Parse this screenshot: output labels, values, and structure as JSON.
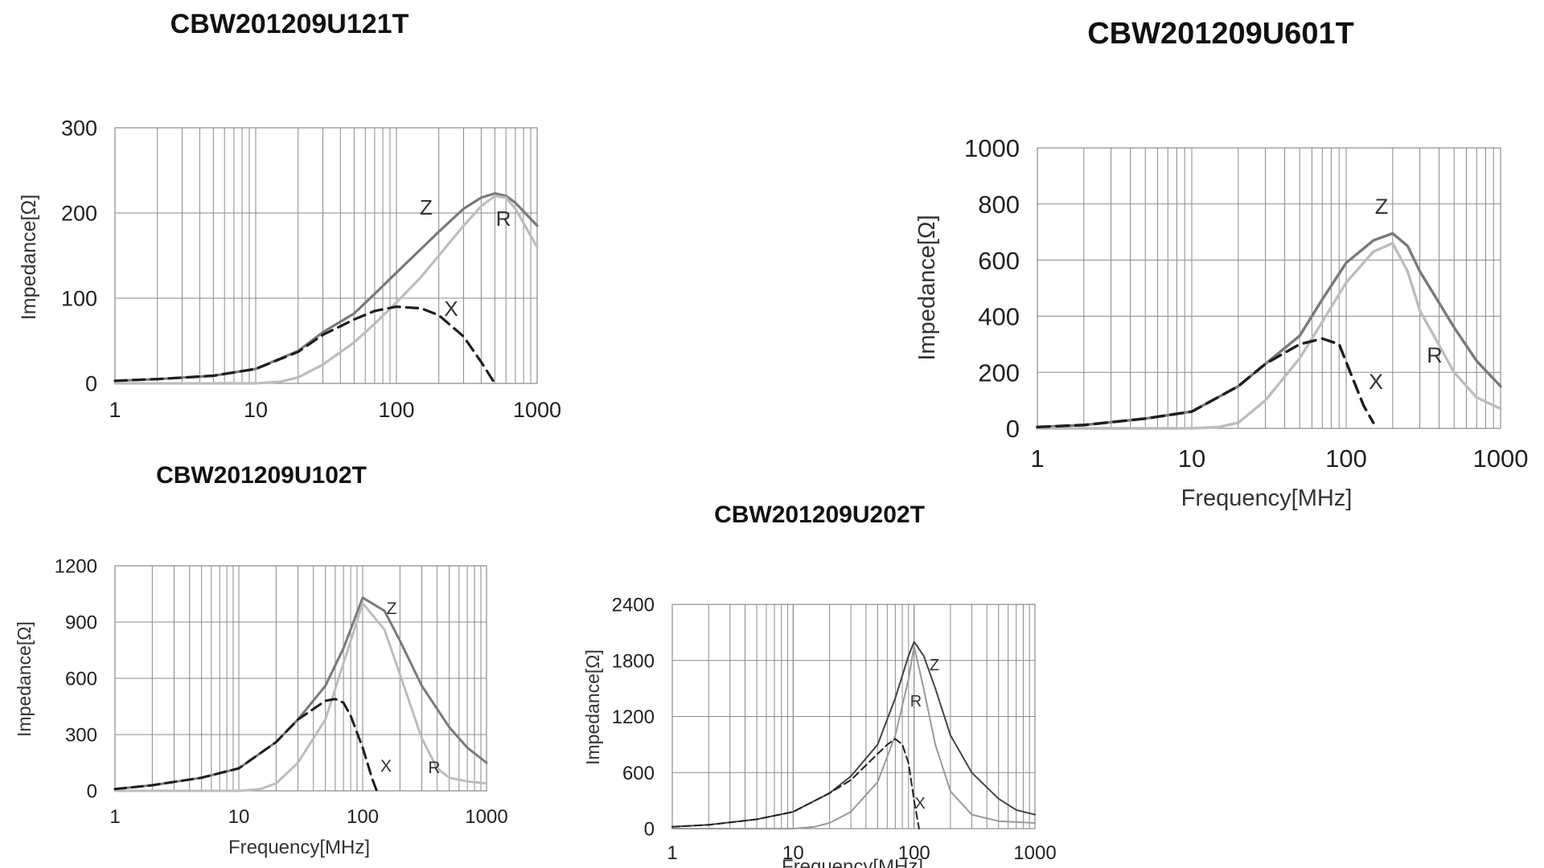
{
  "chart_data": [
    {
      "type": "line",
      "title": "CBW201209U121T",
      "xlabel": "",
      "ylabel": "Impedance[Ω]",
      "x_scale": "log",
      "xlim": [
        1,
        1000
      ],
      "ylim": [
        0,
        300
      ],
      "x_ticks": [
        "1",
        "10",
        "100",
        "1000"
      ],
      "y_ticks": [
        "0",
        "100",
        "200",
        "300"
      ],
      "grid": true,
      "series": [
        {
          "name": "Z",
          "color": "#7a7a7a",
          "style": "solid",
          "x": [
            1,
            2,
            5,
            10,
            20,
            30,
            50,
            70,
            100,
            150,
            200,
            300,
            400,
            500,
            600,
            700,
            1000
          ],
          "y": [
            3,
            5,
            9,
            17,
            38,
            60,
            82,
            105,
            130,
            158,
            178,
            205,
            218,
            223,
            220,
            212,
            185
          ]
        },
        {
          "name": "R",
          "color": "#bdbdbd",
          "style": "solid",
          "x": [
            1,
            5,
            10,
            15,
            20,
            30,
            50,
            70,
            100,
            150,
            200,
            300,
            400,
            500,
            600,
            700,
            1000
          ],
          "y": [
            0,
            0,
            0,
            2,
            7,
            22,
            48,
            70,
            95,
            125,
            150,
            185,
            208,
            220,
            218,
            205,
            160
          ]
        },
        {
          "name": "X",
          "color": "#1e1e1e",
          "style": "dashed",
          "x": [
            1,
            2,
            5,
            10,
            20,
            30,
            50,
            70,
            100,
            150,
            200,
            300,
            400,
            500
          ],
          "y": [
            3,
            5,
            9,
            17,
            37,
            57,
            75,
            85,
            90,
            88,
            80,
            55,
            25,
            0
          ]
        }
      ]
    },
    {
      "type": "line",
      "title": "CBW201209U601T",
      "xlabel": "Frequency[MHz]",
      "ylabel": "Impedance[Ω]",
      "x_scale": "log",
      "xlim": [
        1,
        1000
      ],
      "ylim": [
        0,
        1000
      ],
      "x_ticks": [
        "1",
        "10",
        "100",
        "1000"
      ],
      "y_ticks": [
        "0",
        "200",
        "400",
        "600",
        "800",
        "1000"
      ],
      "grid": true,
      "series": [
        {
          "name": "Z",
          "color": "#7a7a7a",
          "style": "solid",
          "x": [
            1,
            2,
            5,
            10,
            20,
            30,
            50,
            70,
            100,
            150,
            200,
            250,
            300,
            500,
            700,
            1000
          ],
          "y": [
            5,
            12,
            35,
            60,
            150,
            230,
            330,
            460,
            590,
            670,
            695,
            650,
            560,
            360,
            240,
            150
          ]
        },
        {
          "name": "R",
          "color": "#bdbdbd",
          "style": "solid",
          "x": [
            1,
            10,
            15,
            20,
            30,
            50,
            70,
            100,
            150,
            200,
            250,
            300,
            500,
            700,
            1000
          ],
          "y": [
            0,
            0,
            5,
            20,
            100,
            250,
            380,
            520,
            630,
            660,
            560,
            420,
            200,
            110,
            70
          ]
        },
        {
          "name": "X",
          "color": "#1e1e1e",
          "style": "dashed",
          "x": [
            1,
            2,
            5,
            10,
            20,
            30,
            50,
            70,
            90,
            110,
            130,
            150
          ],
          "y": [
            5,
            12,
            35,
            60,
            150,
            230,
            300,
            320,
            300,
            180,
            80,
            20
          ]
        }
      ]
    },
    {
      "type": "line",
      "title": "CBW201209U102T",
      "xlabel": "Frequency[MHz]",
      "ylabel": "Impedance[Ω]",
      "x_scale": "log",
      "xlim": [
        1,
        1000
      ],
      "ylim": [
        0,
        1200
      ],
      "x_ticks": [
        "1",
        "10",
        "100",
        "1000"
      ],
      "y_ticks": [
        "0",
        "300",
        "600",
        "900",
        "1200"
      ],
      "grid": true,
      "series": [
        {
          "name": "Z",
          "color": "#7a7a7a",
          "style": "solid",
          "x": [
            1,
            2,
            5,
            10,
            20,
            30,
            50,
            70,
            100,
            150,
            200,
            300,
            500,
            700,
            1000
          ],
          "y": [
            10,
            30,
            70,
            120,
            260,
            380,
            560,
            760,
            1030,
            960,
            800,
            560,
            340,
            230,
            150
          ]
        },
        {
          "name": "R",
          "color": "#bdbdbd",
          "style": "solid",
          "x": [
            1,
            10,
            15,
            20,
            30,
            50,
            70,
            100,
            150,
            200,
            300,
            400,
            500,
            700,
            1000
          ],
          "y": [
            0,
            0,
            10,
            40,
            150,
            380,
            680,
            1000,
            860,
            620,
            280,
            120,
            70,
            50,
            40
          ]
        },
        {
          "name": "X",
          "color": "#1e1e1e",
          "style": "dashed",
          "x": [
            1,
            2,
            5,
            10,
            20,
            30,
            50,
            60,
            70,
            80,
            100,
            120,
            130
          ],
          "y": [
            10,
            30,
            70,
            120,
            260,
            380,
            480,
            490,
            470,
            400,
            230,
            60,
            0
          ]
        }
      ]
    },
    {
      "type": "line",
      "title": "CBW201209U202T",
      "xlabel": "Frequency[MHz]",
      "ylabel": "Impedance[Ω]",
      "x_scale": "log",
      "xlim": [
        1,
        1000
      ],
      "ylim": [
        0,
        2400
      ],
      "x_ticks": [
        "1",
        "10",
        "100",
        "1000"
      ],
      "y_ticks": [
        "0",
        "600",
        "1200",
        "1800",
        "2400"
      ],
      "grid": true,
      "series": [
        {
          "name": "Z",
          "color": "#444444",
          "style": "solid",
          "x": [
            1,
            2,
            5,
            10,
            20,
            30,
            50,
            70,
            90,
            100,
            120,
            150,
            200,
            300,
            500,
            700,
            1000
          ],
          "y": [
            20,
            40,
            100,
            180,
            380,
            560,
            900,
            1400,
            1850,
            2000,
            1850,
            1500,
            1000,
            600,
            320,
            200,
            150
          ]
        },
        {
          "name": "R",
          "color": "#9a9a9a",
          "style": "solid",
          "x": [
            1,
            10,
            15,
            20,
            30,
            50,
            70,
            90,
            100,
            120,
            150,
            200,
            300,
            500,
            1000
          ],
          "y": [
            0,
            0,
            20,
            60,
            180,
            500,
            1000,
            1600,
            1950,
            1500,
            900,
            400,
            150,
            80,
            60
          ]
        },
        {
          "name": "X",
          "color": "#222222",
          "style": "dashed",
          "x": [
            1,
            2,
            5,
            10,
            20,
            30,
            50,
            60,
            70,
            80,
            90,
            100,
            110
          ],
          "y": [
            20,
            40,
            100,
            180,
            380,
            520,
            800,
            900,
            960,
            900,
            700,
            300,
            0
          ]
        }
      ]
    }
  ]
}
